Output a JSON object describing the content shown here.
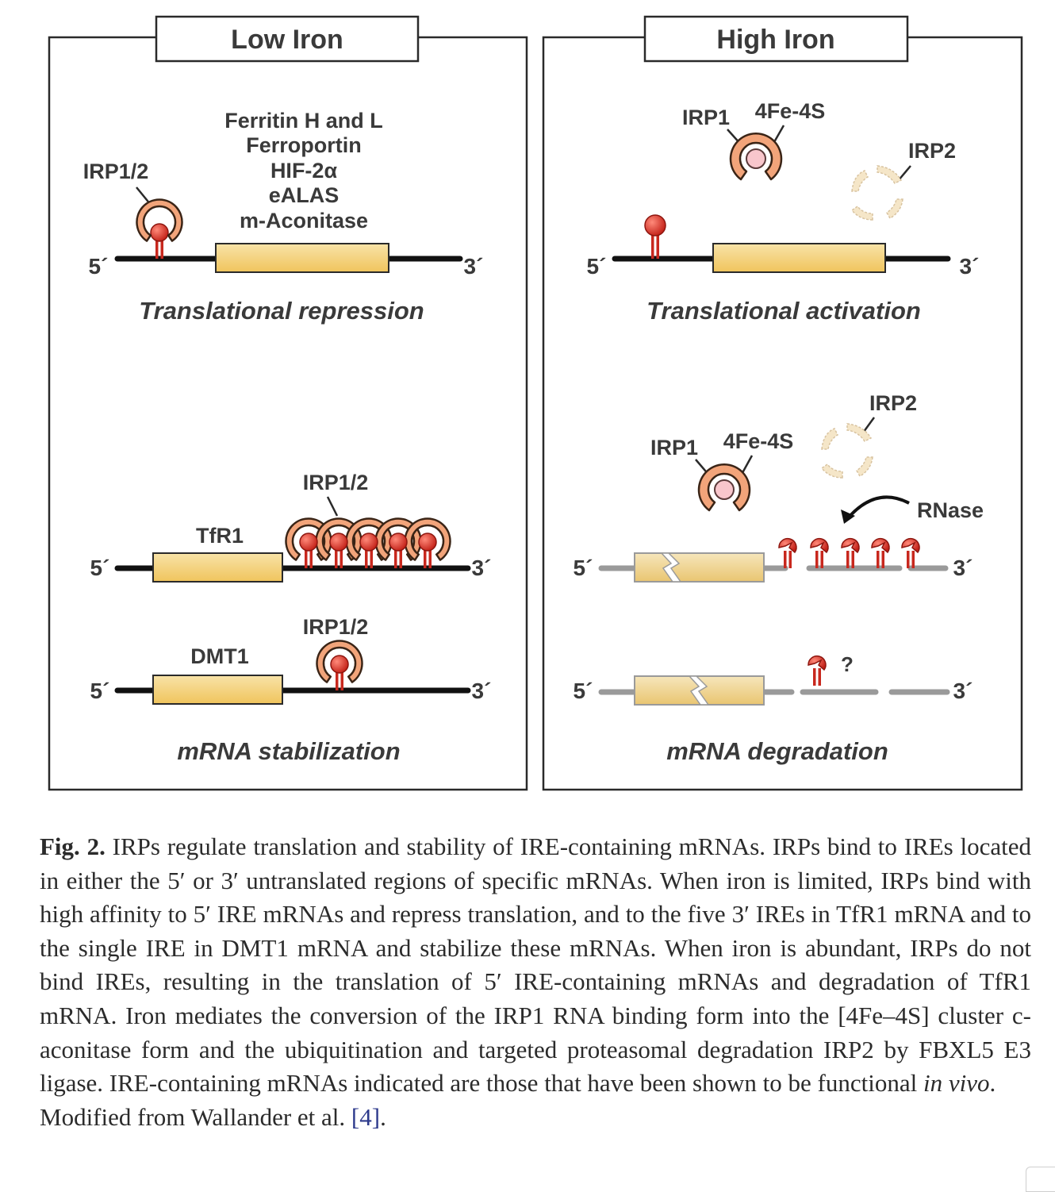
{
  "figure": {
    "left_panel": {
      "title": "Low Iron",
      "top": {
        "protein_label": "IRP1/2",
        "genes": [
          "Ferritin H and L",
          "Ferroportin",
          "HIF-2α",
          "eALAS",
          "m-Aconitase"
        ],
        "five_prime": "5´",
        "three_prime": "3´",
        "outcome": "Translational repression"
      },
      "tfr1": {
        "protein_label": "IRP1/2",
        "gene": "TfR1",
        "five_prime": "5´",
        "three_prime": "3´"
      },
      "dmt1": {
        "protein_label": "IRP1/2",
        "gene": "DMT1",
        "five_prime": "5´",
        "three_prime": "3´"
      },
      "bottom_outcome": "mRNA stabilization"
    },
    "right_panel": {
      "title": "High Iron",
      "top": {
        "irp1_label": "IRP1",
        "cluster_label": "4Fe-4S",
        "irp2_label": "IRP2",
        "five_prime": "5´",
        "three_prime": "3´",
        "outcome": "Translational activation"
      },
      "tfr1": {
        "irp1_label": "IRP1",
        "cluster_label": "4Fe-4S",
        "irp2_label": "IRP2",
        "rnase_label": "RNase",
        "five_prime": "5´",
        "three_prime": "3´"
      },
      "dmt1": {
        "question": "?",
        "five_prime": "5´",
        "three_prime": "3´"
      },
      "bottom_outcome": "mRNA degradation"
    }
  },
  "caption": {
    "label": "Fig. 2.",
    "text": "IRPs regulate translation and stability of IRE-containing mRNAs. IRPs bind to IREs located in either the 5′ or 3′ untranslated regions of specific mRNAs. When iron is limited, IRPs bind with high affinity to 5′ IRE mRNAs and repress translation, and to the five 3′ IREs in TfR1 mRNA and to the single IRE in DMT1 mRNA and stabilize these mRNAs. When iron is abundant, IRPs do not bind IREs, resulting in the translation of 5′ IRE-containing mRNAs and degradation of TfR1 mRNA. Iron mediates the conversion of the IRP1 RNA binding form into the [4Fe–4S] cluster c-aconitase form and the ubiquitination and targeted proteasomal degradation IRP2 by FBXL5 E3 ligase. IRE-containing mRNAs indicated are those that have been shown to be functional",
    "italic_end": "in vivo",
    "end_punct": ".",
    "source_prefix": "Modified from Wallander et al. ",
    "source_ref": "[4]",
    "source_suffix": "."
  }
}
